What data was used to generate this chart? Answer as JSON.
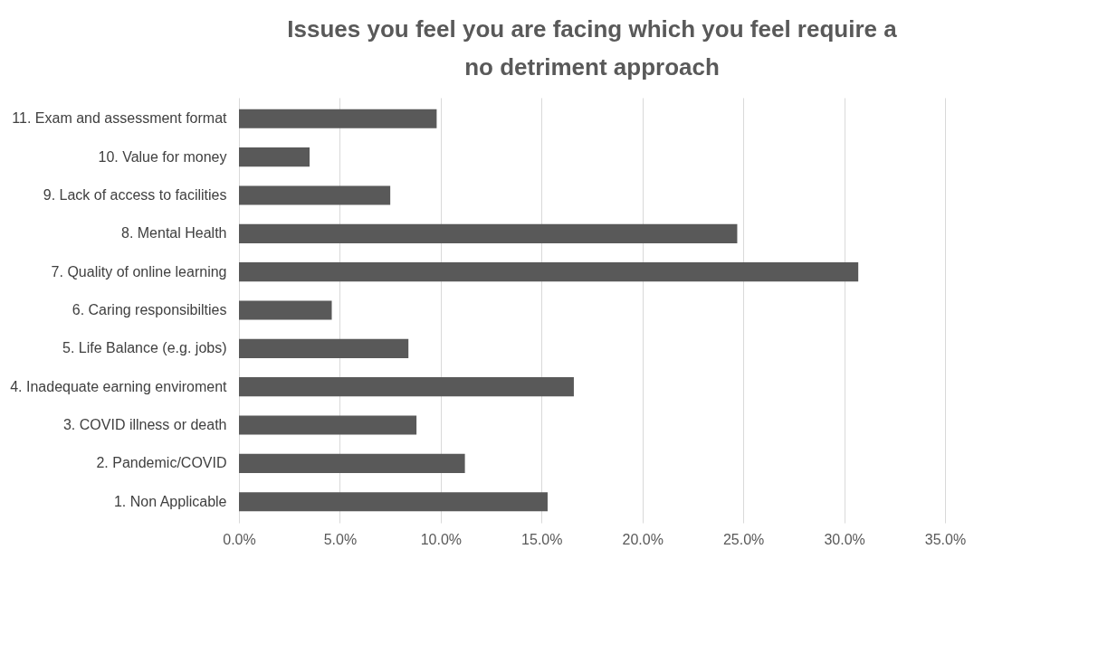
{
  "chart_data": {
    "type": "bar",
    "orientation": "horizontal",
    "title": "Issues you feel you are facing which you feel require a no detriment approach",
    "categories": [
      "11. Exam and assessment format",
      "10. Value for money",
      "9. Lack of access to facilities",
      "8. Mental Health",
      "7. Quality of online learning",
      "6. Caring responsibilties",
      "5. Life Balance (e.g. jobs)",
      "4. Inadequate earning enviroment",
      "3. COVID illness or death",
      "2. Pandemic/COVID",
      "1. Non Applicable"
    ],
    "values": [
      9.8,
      3.5,
      7.5,
      24.7,
      30.7,
      4.6,
      8.4,
      16.6,
      8.8,
      11.2,
      15.3
    ],
    "color": "#595959",
    "xlim": [
      0,
      35
    ],
    "xticks": [
      {
        "value": 0,
        "label": "0.0%"
      },
      {
        "value": 5,
        "label": "5.0%"
      },
      {
        "value": 10,
        "label": "10.0%"
      },
      {
        "value": 15,
        "label": "15.0%"
      },
      {
        "value": 20,
        "label": "20.0%"
      },
      {
        "value": 25,
        "label": "25.0%"
      },
      {
        "value": 30,
        "label": "30.0%"
      },
      {
        "value": 35,
        "label": "35.0%"
      }
    ],
    "grid": "x"
  }
}
